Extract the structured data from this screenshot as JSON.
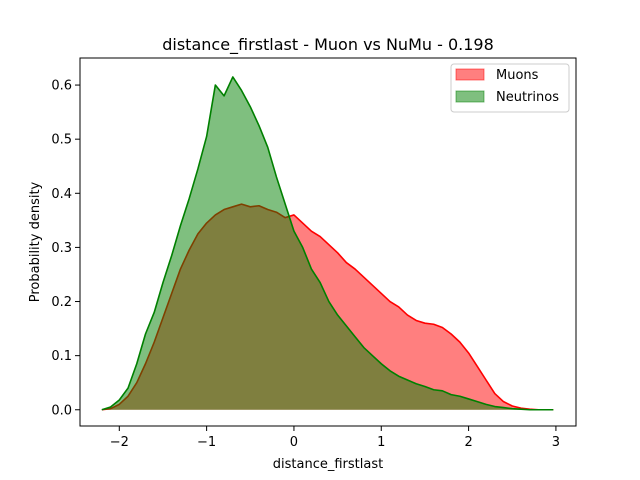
{
  "chart_data": {
    "type": "area",
    "title": "distance_firstlast - Muon vs NuMu - 0.198",
    "xlabel": "distance_firstlast",
    "ylabel": "Probability density",
    "xlim": [
      -2.45,
      3.23
    ],
    "ylim": [
      -0.03,
      0.65
    ],
    "xticks": [
      -2,
      -1,
      0,
      1,
      2,
      3
    ],
    "yticks": [
      0.0,
      0.1,
      0.2,
      0.3,
      0.4,
      0.5,
      0.6
    ],
    "xtick_labels": [
      "−2",
      "−1",
      "0",
      "1",
      "2",
      "3"
    ],
    "ytick_labels": [
      "0.0",
      "0.1",
      "0.2",
      "0.3",
      "0.4",
      "0.5",
      "0.6"
    ],
    "grid": false,
    "legend_position": "top-right",
    "series": [
      {
        "name": "Muons",
        "line_color": "#ff0000",
        "fill_color": "#ff0000",
        "fill_opacity": 0.5,
        "points": [
          [
            -2.2,
            0.0
          ],
          [
            -2.1,
            0.002
          ],
          [
            -2.0,
            0.01
          ],
          [
            -1.9,
            0.025
          ],
          [
            -1.8,
            0.05
          ],
          [
            -1.7,
            0.085
          ],
          [
            -1.6,
            0.125
          ],
          [
            -1.5,
            0.17
          ],
          [
            -1.4,
            0.215
          ],
          [
            -1.3,
            0.26
          ],
          [
            -1.2,
            0.295
          ],
          [
            -1.1,
            0.325
          ],
          [
            -1.0,
            0.345
          ],
          [
            -0.9,
            0.36
          ],
          [
            -0.8,
            0.37
          ],
          [
            -0.7,
            0.375
          ],
          [
            -0.6,
            0.38
          ],
          [
            -0.5,
            0.375
          ],
          [
            -0.4,
            0.377
          ],
          [
            -0.3,
            0.37
          ],
          [
            -0.2,
            0.365
          ],
          [
            -0.1,
            0.355
          ],
          [
            0.0,
            0.36
          ],
          [
            0.1,
            0.345
          ],
          [
            0.2,
            0.33
          ],
          [
            0.3,
            0.32
          ],
          [
            0.4,
            0.305
          ],
          [
            0.5,
            0.29
          ],
          [
            0.6,
            0.272
          ],
          [
            0.7,
            0.26
          ],
          [
            0.8,
            0.245
          ],
          [
            0.9,
            0.23
          ],
          [
            1.0,
            0.215
          ],
          [
            1.1,
            0.2
          ],
          [
            1.2,
            0.19
          ],
          [
            1.3,
            0.175
          ],
          [
            1.4,
            0.165
          ],
          [
            1.5,
            0.16
          ],
          [
            1.6,
            0.158
          ],
          [
            1.7,
            0.152
          ],
          [
            1.8,
            0.14
          ],
          [
            1.9,
            0.125
          ],
          [
            2.0,
            0.105
          ],
          [
            2.1,
            0.08
          ],
          [
            2.2,
            0.055
          ],
          [
            2.3,
            0.03
          ],
          [
            2.4,
            0.015
          ],
          [
            2.5,
            0.007
          ],
          [
            2.6,
            0.003
          ],
          [
            2.7,
            0.001
          ],
          [
            2.8,
            0.0
          ],
          [
            2.97,
            0.0
          ]
        ]
      },
      {
        "name": "Neutrinos",
        "line_color": "#008000",
        "fill_color": "#008000",
        "fill_opacity": 0.5,
        "points": [
          [
            -2.2,
            0.0
          ],
          [
            -2.1,
            0.005
          ],
          [
            -2.0,
            0.018
          ],
          [
            -1.9,
            0.04
          ],
          [
            -1.8,
            0.085
          ],
          [
            -1.7,
            0.14
          ],
          [
            -1.6,
            0.18
          ],
          [
            -1.5,
            0.235
          ],
          [
            -1.4,
            0.285
          ],
          [
            -1.3,
            0.34
          ],
          [
            -1.2,
            0.39
          ],
          [
            -1.1,
            0.445
          ],
          [
            -1.0,
            0.505
          ],
          [
            -0.9,
            0.6
          ],
          [
            -0.8,
            0.58
          ],
          [
            -0.7,
            0.615
          ],
          [
            -0.6,
            0.59
          ],
          [
            -0.5,
            0.56
          ],
          [
            -0.4,
            0.525
          ],
          [
            -0.3,
            0.485
          ],
          [
            -0.2,
            0.43
          ],
          [
            -0.1,
            0.38
          ],
          [
            0.0,
            0.33
          ],
          [
            0.1,
            0.3
          ],
          [
            0.2,
            0.26
          ],
          [
            0.3,
            0.235
          ],
          [
            0.4,
            0.2
          ],
          [
            0.5,
            0.175
          ],
          [
            0.6,
            0.155
          ],
          [
            0.7,
            0.135
          ],
          [
            0.8,
            0.115
          ],
          [
            0.9,
            0.1
          ],
          [
            1.0,
            0.085
          ],
          [
            1.1,
            0.072
          ],
          [
            1.2,
            0.062
          ],
          [
            1.3,
            0.055
          ],
          [
            1.4,
            0.048
          ],
          [
            1.5,
            0.043
          ],
          [
            1.6,
            0.037
          ],
          [
            1.7,
            0.035
          ],
          [
            1.8,
            0.028
          ],
          [
            1.9,
            0.025
          ],
          [
            2.0,
            0.02
          ],
          [
            2.1,
            0.015
          ],
          [
            2.2,
            0.01
          ],
          [
            2.3,
            0.006
          ],
          [
            2.4,
            0.004
          ],
          [
            2.5,
            0.002
          ],
          [
            2.6,
            0.001
          ],
          [
            2.7,
            0.0
          ],
          [
            2.97,
            0.0
          ]
        ]
      }
    ]
  }
}
